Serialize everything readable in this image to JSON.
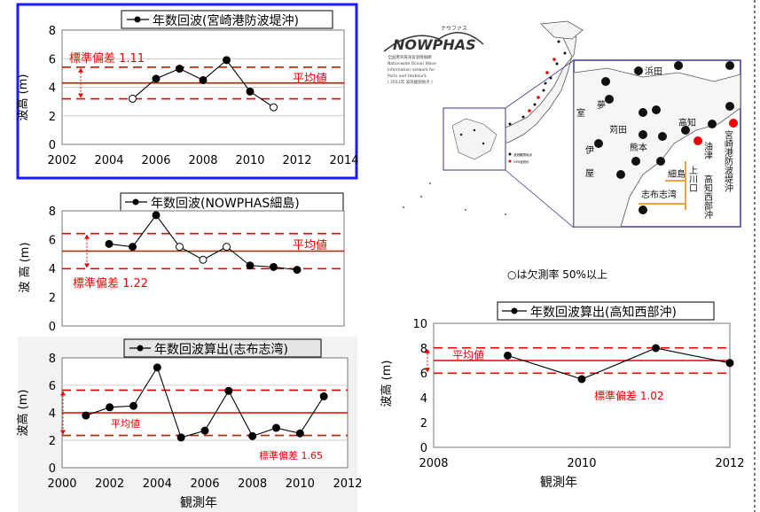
{
  "note": "○は欠測率 50%以上",
  "map": {
    "logo": "NOWPHAS",
    "logo_kana": "ナウファス",
    "title_lines": [
      "全国港湾海洋波浪情報網",
      "Nationwide Ocean Wave",
      "information network for",
      "Ports and HarbourS",
      "( 2011年 波浪観測地点 )"
    ],
    "legend": [
      "波浪観測地点",
      "GPS波浪計"
    ],
    "labels": [
      "浜田",
      "室",
      "夢",
      "苅田",
      "熊本",
      "高知",
      "上川口",
      "油津",
      "細島",
      "志布志湾",
      "高知西部沖",
      "宮崎港防波堤沖",
      "伊",
      "屋"
    ]
  },
  "chart_data": [
    {
      "type": "line",
      "title": "年数回波(宮崎港防波堤沖)",
      "ylabel": "波高 (m)",
      "xlabel": "",
      "xlim": [
        2002,
        2014
      ],
      "ylim": [
        0,
        8
      ],
      "xticks": [
        2002,
        2004,
        2006,
        2008,
        2010,
        2012,
        2014
      ],
      "yticks": [
        0,
        2,
        4,
        6,
        8
      ],
      "x": [
        2005,
        2006,
        2007,
        2008,
        2009,
        2010,
        2011
      ],
      "y": [
        3.2,
        4.6,
        5.3,
        4.5,
        5.9,
        3.7,
        2.6
      ],
      "hollow": [
        true,
        false,
        false,
        false,
        false,
        false,
        true
      ],
      "mean": 4.3,
      "std": 1.11,
      "mean_label": "平均値",
      "std_label": "標準偏差 1.11",
      "grid": true
    },
    {
      "type": "line",
      "title": "年数回波(NOWPHAS細島)",
      "ylabel": "波 高 (m)",
      "xlabel": "",
      "xlim": [
        2000,
        2012
      ],
      "ylim": [
        0,
        8
      ],
      "xticks": [],
      "yticks": [
        0,
        2,
        4,
        6,
        8
      ],
      "x": [
        2002,
        2003,
        2004,
        2005,
        2006,
        2007,
        2008,
        2009,
        2010
      ],
      "y": [
        5.7,
        5.5,
        7.7,
        5.5,
        4.6,
        5.5,
        4.2,
        4.1,
        3.9
      ],
      "hollow": [
        false,
        false,
        false,
        true,
        true,
        true,
        false,
        false,
        false
      ],
      "mean": 5.2,
      "std": 1.22,
      "mean_label": "平均値",
      "std_label": "標準偏差 1.22",
      "grid": false
    },
    {
      "type": "line",
      "title": "年数回波算出(志布志湾)",
      "ylabel": "波高 (m)",
      "xlabel": "観測年",
      "xlim": [
        2000,
        2012
      ],
      "ylim": [
        0,
        8
      ],
      "xticks": [
        2000,
        2002,
        2004,
        2006,
        2008,
        2010,
        2012
      ],
      "yticks": [
        0,
        2,
        4,
        6,
        8
      ],
      "x": [
        2001,
        2002,
        2003,
        2004,
        2005,
        2006,
        2007,
        2008,
        2009,
        2010,
        2011
      ],
      "y": [
        3.8,
        4.4,
        4.5,
        7.3,
        2.2,
        2.7,
        5.6,
        2.3,
        2.9,
        2.5,
        5.2
      ],
      "hollow": [
        false,
        false,
        false,
        false,
        false,
        false,
        false,
        false,
        false,
        false,
        false
      ],
      "mean": 4.0,
      "std": 1.65,
      "mean_label": "平均値",
      "std_label": "標準偏差 1.65",
      "grid": true
    },
    {
      "type": "line",
      "title": "年数回波算出(高知西部沖)",
      "ylabel": "波高 (m)",
      "xlabel": "観測年",
      "xlim": [
        2008,
        2012
      ],
      "ylim": [
        0,
        10
      ],
      "xticks": [
        2008,
        2010,
        2012
      ],
      "yticks": [
        0,
        2,
        4,
        6,
        8,
        10
      ],
      "x": [
        2009,
        2010,
        2011,
        2012
      ],
      "y": [
        7.4,
        5.5,
        8.0,
        6.8
      ],
      "hollow": [
        false,
        false,
        false,
        false
      ],
      "mean": 7.0,
      "std": 1.02,
      "mean_label": "平均値",
      "std_label": "標準偏差 1.02",
      "grid": false
    }
  ]
}
